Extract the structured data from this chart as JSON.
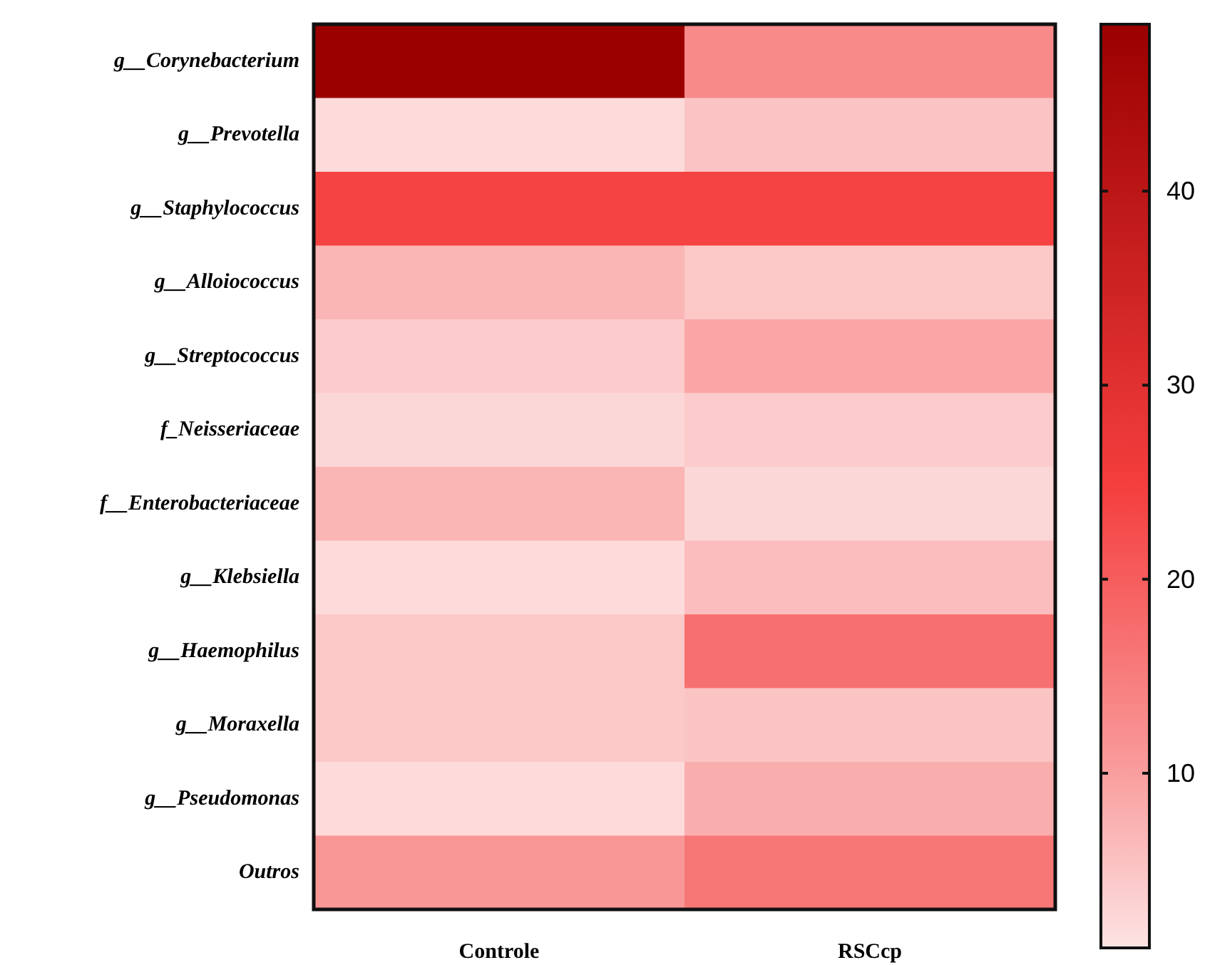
{
  "chart_data": {
    "type": "heatmap",
    "categories": [
      "Controle",
      "RSCcp"
    ],
    "y_categories": [
      "g__Corynebacterium",
      "g__Prevotella",
      "g__Staphylococcus",
      "g__Alloiococcus",
      "g__Streptococcus",
      "f_Neisseriaceae",
      "f__Enterobacteriaceae",
      "g__Klebsiella",
      "g__Haemophilus",
      "g__Moraxella",
      "g__Pseudomonas",
      "Outros"
    ],
    "cells": [
      [
        48.6,
        13
      ],
      [
        2,
        5
      ],
      [
        24,
        24
      ],
      [
        7,
        4.5
      ],
      [
        4,
        9
      ],
      [
        2.5,
        4
      ],
      [
        7,
        2.5
      ],
      [
        2,
        6
      ],
      [
        4.5,
        17
      ],
      [
        4.5,
        5
      ],
      [
        2,
        8
      ],
      [
        11,
        16
      ]
    ],
    "clim": [
      1,
      48.6
    ],
    "cticks": [
      10,
      20,
      30,
      40
    ]
  }
}
